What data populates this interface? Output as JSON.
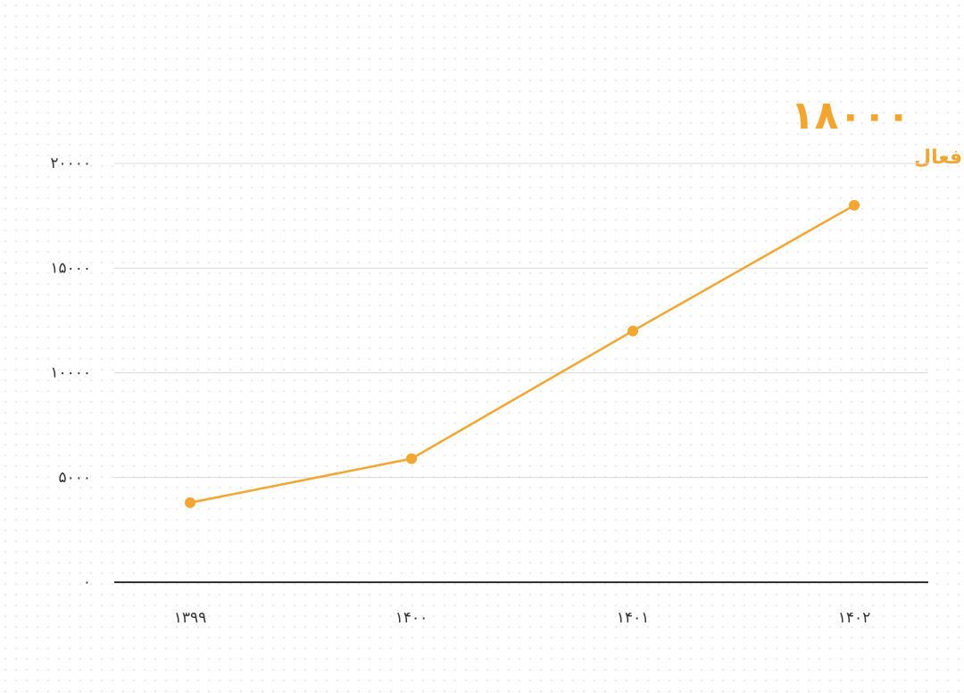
{
  "chart_data": {
    "type": "line",
    "annotation_value": "۱۸۰۰۰",
    "annotation_label": "اقامتگاه فعال",
    "categories": [
      "۱۳۹۹",
      "۱۴۰۰",
      "۱۴۰۱",
      "۱۴۰۲"
    ],
    "series": [
      {
        "name": "اقامتگاه فعال",
        "color": "#f2a531",
        "values": [
          3800,
          5900,
          12000,
          18000
        ]
      }
    ],
    "ylim": [
      0,
      20000
    ],
    "yticks": [
      {
        "value": 0,
        "label": "۰"
      },
      {
        "value": 5000,
        "label": "۵۰۰۰"
      },
      {
        "value": 10000,
        "label": "۱۰۰۰۰"
      },
      {
        "value": 15000,
        "label": "۱۵۰۰۰"
      },
      {
        "value": 20000,
        "label": "۲۰۰۰۰"
      }
    ],
    "grid": true
  }
}
